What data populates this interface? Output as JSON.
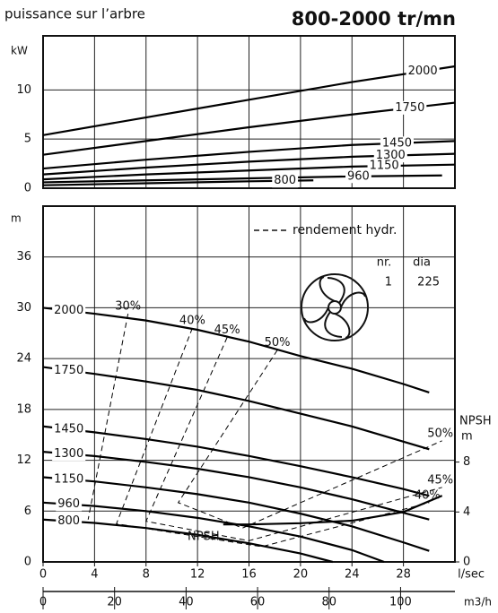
{
  "chart_data": [
    {
      "type": "line",
      "title": "puissance sur l’arbre",
      "subtitle": "800-2000 tr/mn",
      "ylabel": "kW",
      "xlim": [
        0,
        32
      ],
      "xticks": [
        0,
        4,
        8,
        12,
        16,
        20,
        24,
        28
      ],
      "ylim": [
        0,
        15.5
      ],
      "yticks": [
        0,
        5,
        10
      ],
      "grid": true,
      "color": "#000000",
      "series": [
        {
          "name": "2000",
          "x": [
            0,
            8,
            16,
            24,
            32
          ],
          "values": [
            5.4,
            7.2,
            9.0,
            10.8,
            12.4
          ]
        },
        {
          "name": "1750",
          "x": [
            0,
            8,
            16,
            24,
            32
          ],
          "values": [
            3.4,
            4.8,
            6.2,
            7.5,
            8.7
          ]
        },
        {
          "name": "1450",
          "x": [
            0,
            8,
            16,
            24,
            32
          ],
          "values": [
            2.0,
            2.9,
            3.7,
            4.4,
            4.8
          ]
        },
        {
          "name": "1300",
          "x": [
            0,
            8,
            16,
            24,
            32
          ],
          "values": [
            1.4,
            2.1,
            2.7,
            3.2,
            3.5
          ]
        },
        {
          "name": "1150",
          "x": [
            0,
            8,
            16,
            24,
            32
          ],
          "values": [
            0.9,
            1.4,
            1.8,
            2.2,
            2.4
          ]
        },
        {
          "name": "960",
          "x": [
            0,
            8,
            16,
            24,
            31
          ],
          "values": [
            0.6,
            0.8,
            1.0,
            1.2,
            1.3
          ]
        },
        {
          "name": "800",
          "x": [
            0,
            8,
            16,
            21
          ],
          "values": [
            0.3,
            0.5,
            0.7,
            0.8
          ]
        }
      ]
    },
    {
      "type": "line",
      "xlabel": "l/sec",
      "x2label": "m3/h",
      "ylabel": "m",
      "y2label": "NPSH",
      "y2unit": "m",
      "xlim": [
        0,
        32
      ],
      "xticks": [
        0,
        4,
        8,
        12,
        16,
        20,
        24,
        28
      ],
      "x2lim": [
        0,
        115.2
      ],
      "x2ticks": [
        0,
        20,
        40,
        60,
        80,
        100
      ],
      "ylim": [
        0,
        42
      ],
      "yticks": [
        0,
        6,
        12,
        18,
        24,
        30,
        36
      ],
      "y2lim": [
        0,
        28.5
      ],
      "y2ticks": [
        0,
        4,
        8
      ],
      "grid": true,
      "color": "#000000",
      "legend_note": "rendement hydr.",
      "info": {
        "columns": [
          "nr.",
          "dia"
        ],
        "rows": [
          [
            1,
            225
          ]
        ]
      },
      "series": [
        {
          "name": "2000",
          "x": [
            0,
            4,
            8,
            12,
            16,
            20,
            24,
            28,
            30
          ],
          "values": [
            30,
            29.3,
            28.5,
            27.4,
            26,
            24.3,
            22.8,
            21,
            20
          ]
        },
        {
          "name": "1750",
          "x": [
            0,
            4,
            8,
            12,
            16,
            20,
            24,
            28,
            30
          ],
          "values": [
            23,
            22.2,
            21.3,
            20.3,
            19,
            17.5,
            16,
            14.2,
            13.3
          ]
        },
        {
          "name": "1450",
          "x": [
            0,
            4,
            8,
            12,
            16,
            20,
            24,
            28,
            30
          ],
          "values": [
            16,
            15.3,
            14.5,
            13.6,
            12.5,
            11.3,
            10,
            8.6,
            7.8
          ]
        },
        {
          "name": "1300",
          "x": [
            0,
            4,
            8,
            12,
            16,
            20,
            24,
            28,
            30
          ],
          "values": [
            13,
            12.5,
            11.8,
            11,
            10,
            8.8,
            7.4,
            5.8,
            5
          ]
        },
        {
          "name": "1150",
          "x": [
            0,
            4,
            8,
            12,
            16,
            20,
            24,
            28,
            30
          ],
          "values": [
            10,
            9.5,
            8.8,
            8,
            7,
            5.7,
            4.2,
            2.3,
            1.3
          ]
        },
        {
          "name": "960",
          "x": [
            0,
            4,
            8,
            12,
            16,
            20,
            24,
            26.5
          ],
          "values": [
            7,
            6.6,
            6,
            5.2,
            4.2,
            3,
            1.4,
            0
          ]
        },
        {
          "name": "800",
          "x": [
            0,
            4,
            8,
            12,
            16,
            20,
            22.5
          ],
          "values": [
            5,
            4.6,
            4,
            3.2,
            2.2,
            1,
            0
          ]
        },
        {
          "name": "NPSH",
          "axis": "y2",
          "x": [
            14,
            16,
            20,
            24,
            28,
            31
          ],
          "values": [
            3.0,
            3.0,
            3.1,
            3.3,
            4.0,
            5.3
          ]
        },
        {
          "name": "30%",
          "style": "dashed",
          "x": [
            6.6,
            3.5
          ],
          "values": [
            29.3,
            5
          ]
        },
        {
          "name": "40%",
          "style": "dashed",
          "x": [
            11.6,
            5.7,
            17,
            30
          ],
          "values": [
            27.6,
            4.5,
            1.8,
            7
          ]
        },
        {
          "name": "45%",
          "style": "dashed",
          "x": [
            14.3,
            8,
            16,
            31
          ],
          "values": [
            26.5,
            4.8,
            2.5,
            8.8
          ]
        },
        {
          "name": "50%",
          "style": "dashed",
          "x": [
            18.2,
            10.5,
            15.5,
            31
          ],
          "values": [
            25,
            7,
            4,
            14.3
          ]
        }
      ]
    }
  ]
}
